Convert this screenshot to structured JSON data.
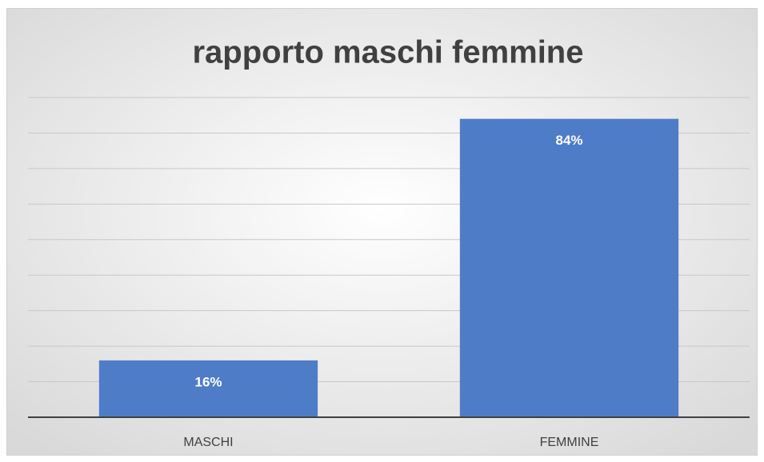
{
  "chart_data": {
    "type": "bar",
    "title": "rapporto maschi femmine",
    "categories": [
      "MASCHI",
      "FEMMINE"
    ],
    "values": [
      16,
      84
    ],
    "value_labels": [
      "16%",
      "84%"
    ],
    "color": "#4f7cc7",
    "ylim": [
      0,
      90
    ],
    "yticks": [
      0,
      10,
      20,
      30,
      40,
      50,
      60,
      70,
      80,
      90
    ],
    "grid": true
  }
}
